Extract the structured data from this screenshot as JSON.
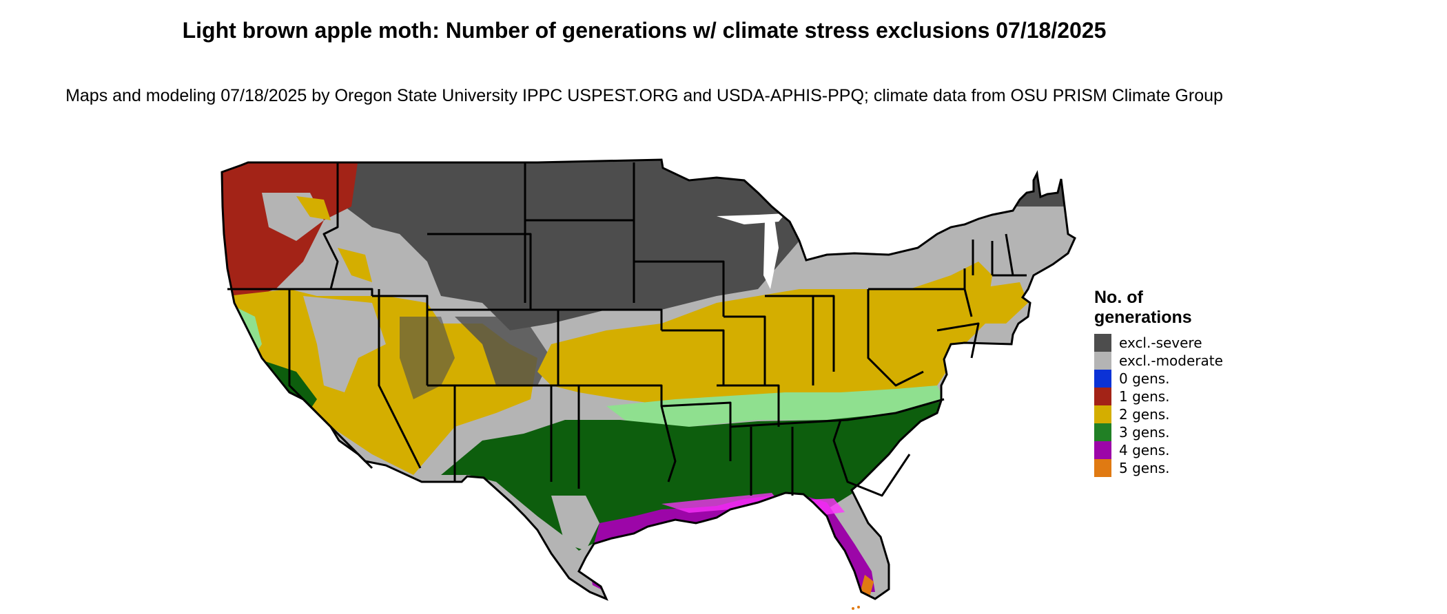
{
  "title": "Light brown apple moth: Number of generations w/ climate stress exclusions 07/18/2025",
  "subtitle": "Maps and modeling 07/18/2025 by Oregon State University IPPC USPEST.ORG and USDA-APHIS-PPQ; climate data from OSU PRISM Climate Group",
  "legend": {
    "title": "No. of generations",
    "items": [
      {
        "label": "excl.-severe",
        "color": "#4d4d4d"
      },
      {
        "label": "excl.-moderate",
        "color": "#b4b4b4"
      },
      {
        "label": "0 gens.",
        "color": "#0b32d6"
      },
      {
        "label": "1 gens.",
        "color": "#a32317"
      },
      {
        "label": "2 gens.",
        "color": "#d4ae00"
      },
      {
        "label": "3 gens.",
        "color": "#218025"
      },
      {
        "label": "4 gens.",
        "color": "#9c06a8"
      },
      {
        "label": "5 gens.",
        "color": "#e07a12"
      }
    ]
  },
  "map_colors": {
    "state_border": "#000000",
    "light_green": "#8fe08f",
    "dark_green": "#0d5e0d",
    "magenta_light": "#ff33ff"
  }
}
